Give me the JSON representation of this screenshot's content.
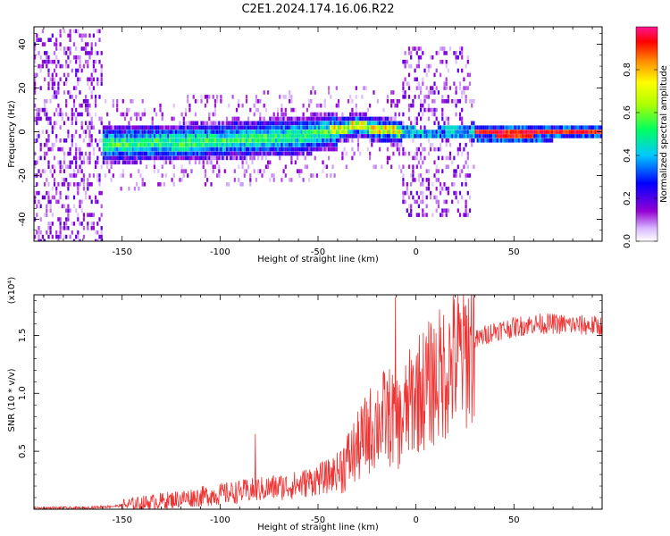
{
  "title": "C2E1.2024.174.16.06.R22",
  "chart_data": [
    {
      "type": "heatmap",
      "xlabel": "Height of straight line (km)",
      "ylabel": "Frequency (Hz)",
      "xlim": [
        -195,
        95
      ],
      "ylim": [
        -50,
        48
      ],
      "xticks": [
        -150,
        -100,
        -50,
        0,
        50
      ],
      "yticks": [
        -40,
        -20,
        0,
        20,
        40
      ],
      "grid": false,
      "description_of_content": "spectrogram; broadband noise for height < -160 km, dense band around 0 Hz with rising drift from -160 to 30 km, narrow strong line near 0 Hz above 30 km",
      "ridge": {
        "x": [
          -160,
          -140,
          -120,
          -100,
          -80,
          -60,
          -40,
          -30,
          -20,
          -10,
          0,
          10,
          20,
          30,
          50,
          70,
          90
        ],
        "y": [
          -6,
          -5,
          -5,
          -4,
          -3,
          -2,
          1,
          3,
          1,
          0,
          -1,
          -1,
          0,
          0,
          -1,
          0,
          0
        ]
      },
      "colorbar": {
        "label": "Normalized spectral amplitude",
        "range": [
          0,
          1
        ],
        "ticks": [
          "0.0",
          "0.2",
          "0.4",
          "0.6",
          "0.8"
        ],
        "colors": [
          "#ffffff",
          "#9400d3",
          "#0000ff",
          "#00ffff",
          "#00ff00",
          "#ffff00",
          "#ff7f00",
          "#ff0000",
          "#ff1493"
        ]
      }
    },
    {
      "type": "line",
      "xlabel": "Height of straight line (km)",
      "ylabel": "SNR (10 * v/v)",
      "scale_label": "(x10⁴)",
      "xlim": [
        -195,
        95
      ],
      "ylim": [
        0,
        1.85
      ],
      "xticks": [
        -150,
        -100,
        -50,
        0,
        50
      ],
      "yticks": [
        0.5,
        1.0,
        1.5
      ],
      "ytick_labels": [
        "0.5",
        "1.0",
        "1.5"
      ],
      "grid": false,
      "series": [
        {
          "color": "#ee3333",
          "x": [
            -195,
            -180,
            -170,
            -160,
            -150,
            -140,
            -130,
            -120,
            -110,
            -100,
            -90,
            -80,
            -70,
            -60,
            -50,
            -45,
            -40,
            -35,
            -30,
            -25,
            -20,
            -15,
            -10,
            -8,
            -5,
            0,
            5,
            10,
            15,
            20,
            25,
            30,
            35,
            40,
            50,
            60,
            70,
            80,
            95
          ],
          "y": [
            0.01,
            0.01,
            0.01,
            0.02,
            0.03,
            0.05,
            0.07,
            0.09,
            0.11,
            0.13,
            0.15,
            0.17,
            0.19,
            0.21,
            0.26,
            0.28,
            0.33,
            0.42,
            0.52,
            0.65,
            0.75,
            0.8,
            0.78,
            0.72,
            0.85,
            1.0,
            1.05,
            1.12,
            1.2,
            1.28,
            1.35,
            1.45,
            1.5,
            1.54,
            1.57,
            1.6,
            1.6,
            1.59,
            1.58
          ]
        }
      ],
      "spikes": [
        {
          "x": -10.5,
          "y": 1.83
        },
        {
          "x": -82,
          "y": 0.65
        }
      ]
    }
  ]
}
